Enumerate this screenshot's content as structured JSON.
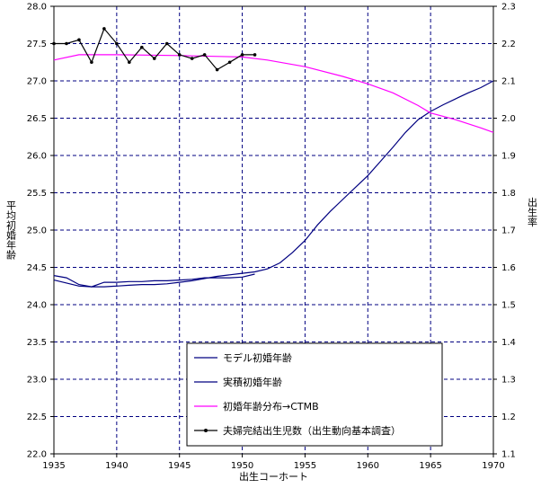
{
  "chart_data": {
    "type": "line",
    "xlabel": "出生コーホート",
    "ylabel_left": "平均初婚年齢",
    "ylabel_right": "出生率",
    "x_ticks": [
      1935,
      1940,
      1945,
      1950,
      1955,
      1960,
      1965,
      1970
    ],
    "y_left_ticks": [
      "22.0",
      "22.5",
      "23.0",
      "23.5",
      "24.0",
      "24.5",
      "25.0",
      "25.5",
      "26.0",
      "26.5",
      "27.0",
      "27.5",
      "28.0"
    ],
    "y_right_ticks": [
      "1.1",
      "1.2",
      "1.3",
      "1.4",
      "1.5",
      "1.6",
      "1.7",
      "1.8",
      "1.9",
      "2.0",
      "2.1",
      "2.2",
      "2.3"
    ],
    "xlim": [
      1935,
      1970
    ],
    "ylim_left": [
      22.0,
      28.0
    ],
    "ylim_right": [
      1.1,
      2.3
    ],
    "grid": true,
    "legend_position": "bottom-center",
    "series": [
      {
        "name": "モデル初婚年齢",
        "axis": "left",
        "color": "#000080",
        "marker": "none",
        "points": [
          [
            1935,
            24.33
          ],
          [
            1936,
            24.29
          ],
          [
            1937,
            24.25
          ],
          [
            1938,
            24.24
          ],
          [
            1939,
            24.24
          ],
          [
            1940,
            24.25
          ],
          [
            1941,
            24.26
          ],
          [
            1942,
            24.27
          ],
          [
            1943,
            24.27
          ],
          [
            1944,
            24.28
          ],
          [
            1945,
            24.3
          ],
          [
            1946,
            24.32
          ],
          [
            1947,
            24.35
          ],
          [
            1948,
            24.38
          ],
          [
            1949,
            24.4
          ],
          [
            1950,
            24.42
          ],
          [
            1951,
            24.44
          ],
          [
            1952,
            24.48
          ],
          [
            1953,
            24.56
          ],
          [
            1954,
            24.7
          ],
          [
            1955,
            24.86
          ],
          [
            1956,
            25.07
          ],
          [
            1957,
            25.25
          ],
          [
            1958,
            25.41
          ],
          [
            1959,
            25.57
          ],
          [
            1960,
            25.73
          ],
          [
            1961,
            25.92
          ],
          [
            1962,
            26.11
          ],
          [
            1963,
            26.31
          ],
          [
            1964,
            26.48
          ],
          [
            1965,
            26.59
          ],
          [
            1966,
            26.68
          ],
          [
            1967,
            26.76
          ],
          [
            1968,
            26.84
          ],
          [
            1969,
            26.91
          ],
          [
            1970,
            27.0
          ]
        ]
      },
      {
        "name": "実積初婚年齢",
        "axis": "left",
        "color": "#000080",
        "marker": "none",
        "points": [
          [
            1935,
            24.39
          ],
          [
            1936,
            24.36
          ],
          [
            1937,
            24.27
          ],
          [
            1938,
            24.24
          ],
          [
            1939,
            24.3
          ],
          [
            1940,
            24.3
          ],
          [
            1941,
            24.31
          ],
          [
            1942,
            24.31
          ],
          [
            1943,
            24.32
          ],
          [
            1944,
            24.32
          ],
          [
            1945,
            24.33
          ],
          [
            1946,
            24.34
          ],
          [
            1947,
            24.36
          ],
          [
            1948,
            24.36
          ],
          [
            1949,
            24.36
          ],
          [
            1950,
            24.37
          ],
          [
            1951,
            24.41
          ]
        ]
      },
      {
        "name": "初婚年齢分布→CTMB",
        "axis": "left",
        "color": "#ff00ff",
        "marker": "none",
        "points": [
          [
            1935,
            27.28
          ],
          [
            1937,
            27.35
          ],
          [
            1940,
            27.35
          ],
          [
            1945,
            27.34
          ],
          [
            1950,
            27.32
          ],
          [
            1952,
            27.28
          ],
          [
            1955,
            27.19
          ],
          [
            1958,
            27.06
          ],
          [
            1960,
            26.96
          ],
          [
            1962,
            26.84
          ],
          [
            1964,
            26.67
          ],
          [
            1965,
            26.57
          ],
          [
            1967,
            26.48
          ],
          [
            1969,
            26.37
          ],
          [
            1970,
            26.31
          ]
        ]
      },
      {
        "name": "夫婦完結出生児数（出生動向基本調査）",
        "axis": "right",
        "color": "#000000",
        "marker": "dot",
        "points": [
          [
            1935,
            2.2
          ],
          [
            1936,
            2.2
          ],
          [
            1937,
            2.21
          ],
          [
            1938,
            2.15
          ],
          [
            1939,
            2.24
          ],
          [
            1940,
            2.2
          ],
          [
            1941,
            2.15
          ],
          [
            1942,
            2.19
          ],
          [
            1943,
            2.16
          ],
          [
            1944,
            2.2
          ],
          [
            1945,
            2.17
          ],
          [
            1946,
            2.16
          ],
          [
            1947,
            2.17
          ],
          [
            1948,
            2.13
          ],
          [
            1949,
            2.15
          ],
          [
            1950,
            2.17
          ],
          [
            1951,
            2.17
          ]
        ]
      }
    ]
  }
}
